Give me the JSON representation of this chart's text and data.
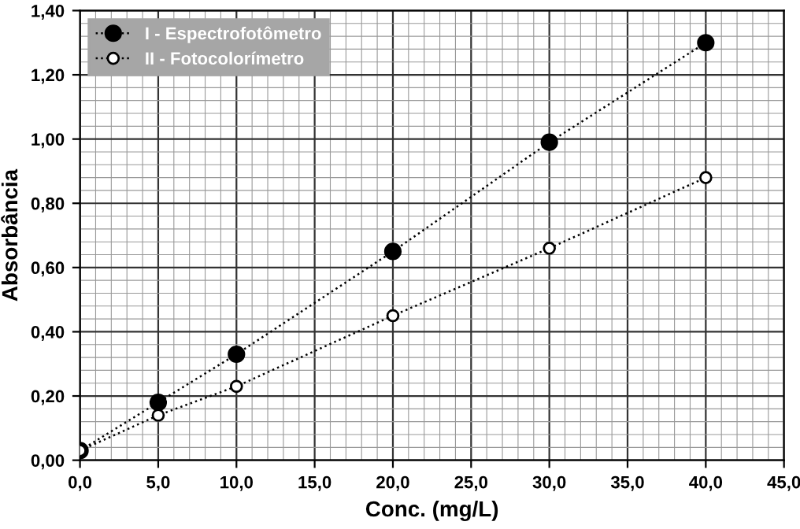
{
  "chart_data": {
    "type": "line",
    "xlabel": "Conc. (mg/L)",
    "ylabel": "Absorbância",
    "xlim": [
      0,
      45
    ],
    "xticks": [
      {
        "value": 0,
        "label": "0,0"
      },
      {
        "value": 5,
        "label": "5,0"
      },
      {
        "value": 10,
        "label": "10,0"
      },
      {
        "value": 15,
        "label": "15,0"
      },
      {
        "value": 20,
        "label": "20,0"
      },
      {
        "value": 25,
        "label": "25,0"
      },
      {
        "value": 30,
        "label": "30,0"
      },
      {
        "value": 35,
        "label": "35,0"
      },
      {
        "value": 40,
        "label": "40,0"
      },
      {
        "value": 45,
        "label": "45,0"
      }
    ],
    "ylim": [
      0,
      1.4
    ],
    "yticks": [
      {
        "value": 0,
        "label": "0,00"
      },
      {
        "value": 0.2,
        "label": "0,20"
      },
      {
        "value": 0.4,
        "label": "0,40"
      },
      {
        "value": 0.6,
        "label": "0,60"
      },
      {
        "value": 0.8,
        "label": "0,80"
      },
      {
        "value": 1.0,
        "label": "1,00"
      },
      {
        "value": 1.2,
        "label": "1,20"
      },
      {
        "value": 1.4,
        "label": "1,40"
      }
    ],
    "x": [
      0,
      5,
      10,
      20,
      30,
      40
    ],
    "series": [
      {
        "name": "I - Espectrofotômetro",
        "color": "#000000",
        "values": [
          0.03,
          0.18,
          0.33,
          0.65,
          0.99,
          1.3
        ]
      },
      {
        "name": "II - Fotocolorímetro",
        "color": "#000000",
        "values": [
          0.03,
          0.14,
          0.23,
          0.45,
          0.66,
          0.88
        ]
      }
    ],
    "marker": "circle",
    "line_style": "dotted",
    "grid": true,
    "legend": "top left"
  }
}
